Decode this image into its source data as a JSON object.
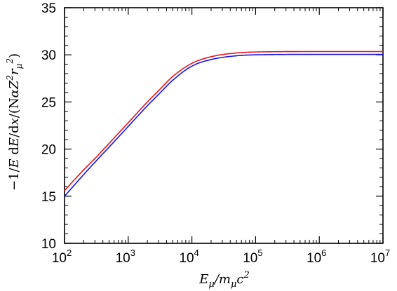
{
  "chart_data": {
    "type": "line",
    "title": "",
    "xlabel": "E_μ/m_μc²",
    "ylabel": "−1/E dE/dx/(NαZ²r_μ²)",
    "xscale": "log",
    "xlim": [
      100,
      10000000
    ],
    "ylim": [
      10,
      35
    ],
    "grid": false,
    "x_ticks": [
      {
        "value": 100,
        "base": "10",
        "exp": "2"
      },
      {
        "value": 1000,
        "base": "10",
        "exp": "3"
      },
      {
        "value": 10000,
        "base": "10",
        "exp": "4"
      },
      {
        "value": 100000,
        "base": "10",
        "exp": "5"
      },
      {
        "value": 1000000,
        "base": "10",
        "exp": "6"
      },
      {
        "value": 10000000,
        "base": "10",
        "exp": "7"
      }
    ],
    "y_ticks": [
      10,
      15,
      20,
      25,
      30,
      35
    ],
    "series": [
      {
        "color": "#e8141c",
        "x": [
          100,
          200,
          300,
          500,
          1000,
          2000,
          3000,
          5000,
          10000,
          20000,
          50000,
          100000,
          1000000,
          10000000
        ],
        "y": [
          15.6,
          17.8,
          19.0,
          20.6,
          22.8,
          25.0,
          26.2,
          27.7,
          29.1,
          29.8,
          30.2,
          30.3,
          30.35,
          30.35
        ]
      },
      {
        "color": "#1414e6",
        "x": [
          100,
          200,
          300,
          500,
          1000,
          2000,
          3000,
          5000,
          10000,
          20000,
          50000,
          100000,
          1000000,
          10000000
        ],
        "y": [
          15.0,
          17.3,
          18.6,
          20.2,
          22.4,
          24.6,
          25.8,
          27.3,
          28.8,
          29.5,
          29.9,
          30.0,
          30.05,
          30.05
        ]
      }
    ]
  },
  "labels": {
    "x_main": "E",
    "x_sub": "μ",
    "x_mid": "/m",
    "x_sub2": "μ",
    "x_end": "c",
    "x_sup": "2",
    "y_prefix": "−1/",
    "y_e1": "E",
    "y_sp": " d",
    "y_e2": "E",
    "y_slash": "/d",
    "y_x": "x",
    "y_open": "/(N",
    "y_alpha": "α",
    "y_z": "Z",
    "y_z2": "2",
    "y_r": "r",
    "y_rsub": "μ",
    "y_rsup": "2",
    "y_close": ")"
  }
}
